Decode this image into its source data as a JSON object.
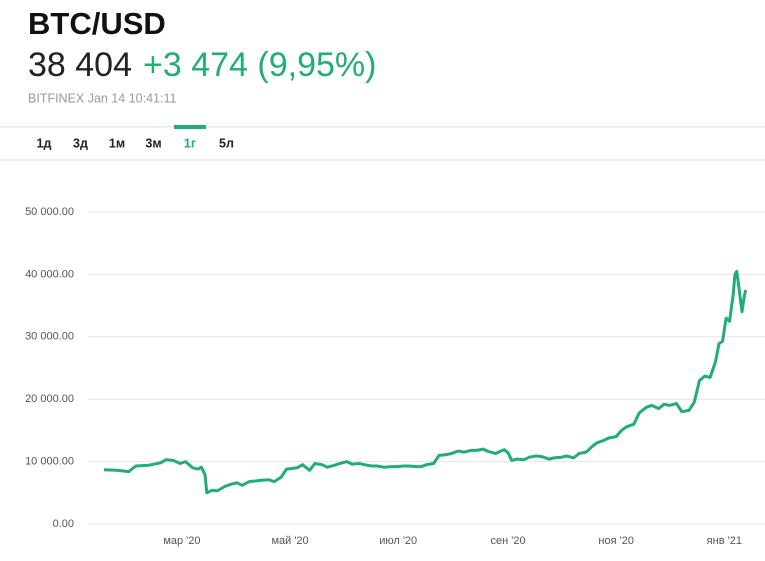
{
  "header": {
    "price": "38 404",
    "change": "+3 474 (9,95%)",
    "source": "BITFINEX Jan 14 10:41:11",
    "tabs": [
      "1д",
      "3д",
      "1м",
      "3м",
      "1г",
      "5л"
    ],
    "active_tab": 4
  },
  "chart_data": {
    "type": "line",
    "title": "BTC/USD",
    "color": "#21ad76",
    "grid": true,
    "x": [
      3,
      10,
      17,
      21,
      28,
      35,
      38,
      42,
      46,
      49,
      53,
      56,
      58,
      60,
      61,
      64,
      67,
      71,
      75,
      78,
      81,
      85,
      89,
      92,
      96,
      99,
      103,
      106,
      109,
      112,
      115,
      119,
      122,
      126,
      129,
      133,
      136,
      140,
      143,
      147,
      150,
      154,
      157,
      161,
      165,
      168,
      172,
      175,
      179,
      182,
      185,
      189,
      192,
      196,
      199,
      203,
      206,
      210,
      213,
      217,
      220,
      224,
      227,
      229,
      231,
      233,
      236,
      240,
      243,
      247,
      250,
      254,
      257,
      261,
      264,
      268,
      271,
      275,
      278,
      281,
      285,
      288,
      292,
      295,
      298,
      302,
      305,
      309,
      312,
      316,
      319,
      322,
      326,
      329,
      333,
      336,
      339,
      342,
      345,
      348,
      350,
      352,
      354,
      356,
      358,
      359,
      360,
      361,
      363,
      364,
      365
    ],
    "values": [
      8700,
      8600,
      8400,
      9300,
      9400,
      9800,
      10300,
      10200,
      9700,
      10000,
      9000,
      8800,
      9100,
      7900,
      5000,
      5400,
      5300,
      6000,
      6400,
      6600,
      6200,
      6800,
      6900,
      7000,
      7100,
      6800,
      7500,
      8800,
      8900,
      9000,
      9500,
      8600,
      9700,
      9500,
      9100,
      9400,
      9700,
      10000,
      9600,
      9700,
      9500,
      9300,
      9300,
      9100,
      9200,
      9200,
      9300,
      9300,
      9200,
      9200,
      9500,
      9700,
      11000,
      11100,
      11300,
      11700,
      11500,
      11800,
      11800,
      12000,
      11600,
      11300,
      11700,
      11900,
      11400,
      10200,
      10400,
      10300,
      10700,
      10900,
      10800,
      10400,
      10600,
      10700,
      10900,
      10600,
      11300,
      11500,
      12300,
      13000,
      13400,
      13800,
      14000,
      15000,
      15600,
      16000,
      17800,
      18700,
      19000,
      18500,
      19200,
      19000,
      19300,
      18000,
      18200,
      19500,
      23000,
      23700,
      23500,
      26000,
      28900,
      29300,
      33000,
      32500,
      36800,
      40000,
      40500,
      38500,
      34000,
      36000,
      37500
    ],
    "xlim": [
      -6,
      372
    ],
    "xticks": [
      {
        "value": 47,
        "label": "мар '20"
      },
      {
        "value": 108,
        "label": "май '20"
      },
      {
        "value": 169,
        "label": "июл '20"
      },
      {
        "value": 231,
        "label": "сен '20"
      },
      {
        "value": 292,
        "label": "ноя '20"
      },
      {
        "value": 353,
        "label": "янв '21"
      }
    ],
    "ylim": [
      0,
      50000
    ],
    "yticks": [
      {
        "value": 0,
        "label": "0.00"
      },
      {
        "value": 10000,
        "label": "10 000.00"
      },
      {
        "value": 20000,
        "label": "20 000.00"
      },
      {
        "value": 30000,
        "label": "30 000.00"
      },
      {
        "value": 40000,
        "label": "40 000.00"
      },
      {
        "value": 50000,
        "label": "50 000.00"
      }
    ]
  }
}
